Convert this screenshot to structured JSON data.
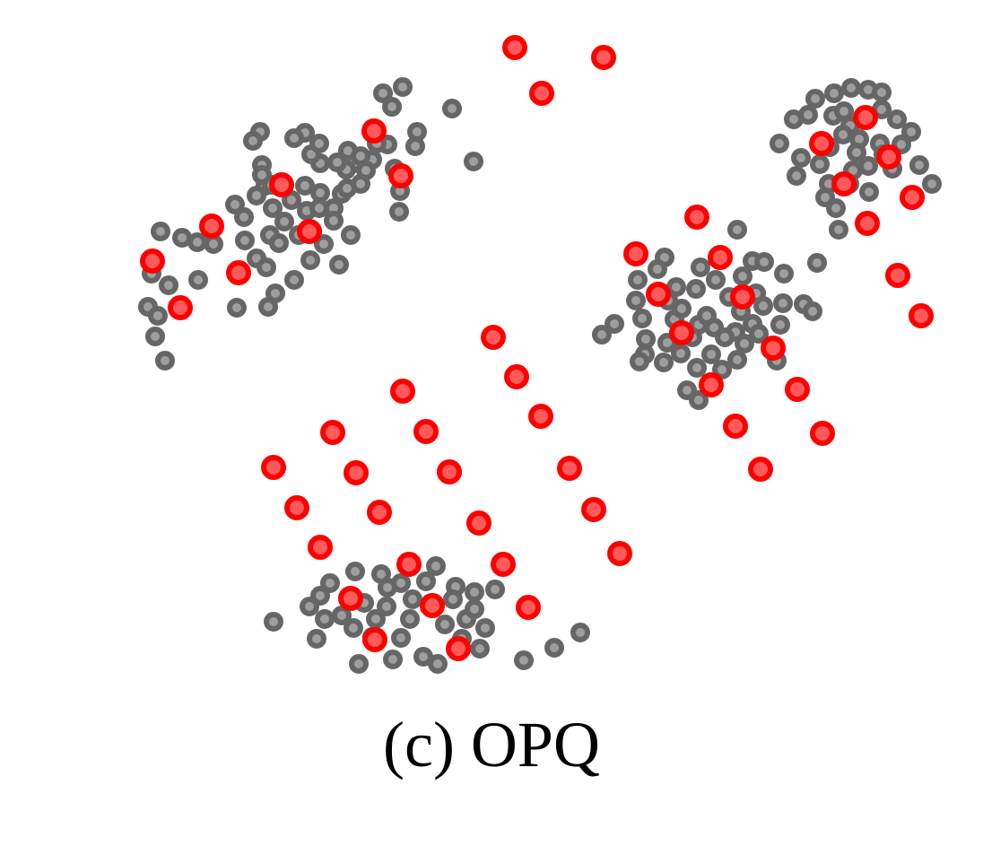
{
  "caption": "(c) OPQ",
  "colors": {
    "data_fill": "#9e9e9e",
    "data_stroke": "#666666",
    "codeword_fill": "#ff5a5a",
    "codeword_stroke": "#ff0000"
  },
  "chart_data": {
    "type": "scatter",
    "title": "",
    "xlabel": "",
    "ylabel": "",
    "axes_visible": false,
    "grid": false,
    "xlim": [
      0,
      1096
    ],
    "ylim": [
      0,
      790
    ],
    "y_inverted": true,
    "series": [
      {
        "role": "data_points",
        "color": "#666666",
        "points": [
          [
            427,
            104
          ],
          [
            449,
            97
          ],
          [
            437,
            119
          ],
          [
            504,
            121
          ],
          [
            528,
            180
          ],
          [
            465,
            147
          ],
          [
            463,
            163
          ],
          [
            432,
            161
          ],
          [
            446,
            213
          ],
          [
            445,
            236
          ],
          [
            440,
            188
          ],
          [
            415,
            178
          ],
          [
            402,
            205
          ],
          [
            394,
            182
          ],
          [
            388,
            168
          ],
          [
            408,
            190
          ],
          [
            420,
            160
          ],
          [
            386,
            189
          ],
          [
            381,
            216
          ],
          [
            372,
            232
          ],
          [
            357,
            182
          ],
          [
            340,
            148
          ],
          [
            328,
            154
          ],
          [
            347,
            172
          ],
          [
            356,
            160
          ],
          [
            290,
            147
          ],
          [
            282,
            157
          ],
          [
            292,
            184
          ],
          [
            296,
            207
          ],
          [
            304,
            232
          ],
          [
            286,
            218
          ],
          [
            272,
            242
          ],
          [
            262,
            228
          ],
          [
            273,
            268
          ],
          [
            286,
            288
          ],
          [
            297,
            298
          ],
          [
            299,
            342
          ],
          [
            307,
            327
          ],
          [
            328,
            312
          ],
          [
            346,
            290
          ],
          [
            361,
            272
          ],
          [
            378,
            295
          ],
          [
            391,
            262
          ],
          [
            372,
            246
          ],
          [
            342,
            235
          ],
          [
            325,
            223
          ],
          [
            317,
            247
          ],
          [
            301,
            262
          ],
          [
            264,
            343
          ],
          [
            238,
            272
          ],
          [
            220,
            270
          ],
          [
            221,
            312
          ],
          [
            203,
            265
          ],
          [
            179,
            258
          ],
          [
            188,
            318
          ],
          [
            169,
            305
          ],
          [
            165,
            342
          ],
          [
            176,
            352
          ],
          [
            173,
            375
          ],
          [
            184,
            402
          ],
          [
            333,
            262
          ],
          [
            356,
            232
          ],
          [
            340,
            207
          ],
          [
            357,
            215
          ],
          [
            292,
            195
          ],
          [
            303,
            206
          ],
          [
            387,
            210
          ],
          [
            402,
            174
          ],
          [
            376,
            181
          ],
          [
            311,
            271
          ],
          [
            909,
            110
          ],
          [
            930,
            104
          ],
          [
            949,
            98
          ],
          [
            968,
            100
          ],
          [
            983,
            103
          ],
          [
            885,
            133
          ],
          [
            901,
            128
          ],
          [
            929,
            129
          ],
          [
            941,
            124
          ],
          [
            948,
            140
          ],
          [
            958,
            155
          ],
          [
            981,
            160
          ],
          [
            1000,
            133
          ],
          [
            1016,
            147
          ],
          [
            995,
            188
          ],
          [
            1025,
            184
          ],
          [
            1039,
            205
          ],
          [
            1005,
            161
          ],
          [
            985,
            172
          ],
          [
            968,
            185
          ],
          [
            951,
            190
          ],
          [
            924,
            205
          ],
          [
            920,
            220
          ],
          [
            932,
            232
          ],
          [
            914,
            183
          ],
          [
            893,
            176
          ],
          [
            888,
            196
          ],
          [
            869,
            160
          ],
          [
            947,
            205
          ],
          [
            969,
            214
          ],
          [
            935,
            256
          ],
          [
            955,
            170
          ],
          [
            940,
            150
          ],
          [
            925,
            164
          ],
          [
            983,
            122
          ],
          [
            741,
            287
          ],
          [
            781,
            298
          ],
          [
            822,
            256
          ],
          [
            839,
            291
          ],
          [
            852,
            292
          ],
          [
            874,
            305
          ],
          [
            873,
            338
          ],
          [
            896,
            339
          ],
          [
            906,
            347
          ],
          [
            911,
            293
          ],
          [
            870,
            362
          ],
          [
            866,
            402
          ],
          [
            822,
            401
          ],
          [
            805,
            412
          ],
          [
            793,
            395
          ],
          [
            772,
            376
          ],
          [
            752,
            356
          ],
          [
            744,
            382
          ],
          [
            740,
            404
          ],
          [
            719,
            395
          ],
          [
            713,
            403
          ],
          [
            720,
            378
          ],
          [
            716,
            355
          ],
          [
            711,
            312
          ],
          [
            733,
            300
          ],
          [
            754,
            320
          ],
          [
            776,
            322
          ],
          [
            798,
            312
          ],
          [
            813,
            331
          ],
          [
            826,
            347
          ],
          [
            843,
            327
          ],
          [
            851,
            341
          ],
          [
            839,
            361
          ],
          [
            820,
            370
          ],
          [
            796,
            365
          ],
          [
            777,
            410
          ],
          [
            766,
            435
          ],
          [
            779,
            446
          ],
          [
            671,
            373
          ],
          [
            685,
            361
          ],
          [
            760,
            344
          ],
          [
            779,
            362
          ],
          [
            808,
            376
          ],
          [
            830,
            383
          ],
          [
            745,
            335
          ],
          [
            846,
            372
          ],
          [
            759,
            394
          ],
          [
            788,
            352
          ],
          [
            828,
            308
          ],
          [
            709,
            335
          ],
          [
            305,
            693
          ],
          [
            353,
            712
          ],
          [
            345,
            676
          ],
          [
            357,
            664
          ],
          [
            368,
            650
          ],
          [
            396,
            637
          ],
          [
            425,
            640
          ],
          [
            447,
            650
          ],
          [
            486,
            631
          ],
          [
            475,
            648
          ],
          [
            508,
            654
          ],
          [
            529,
            660
          ],
          [
            552,
            657
          ],
          [
            541,
            700
          ],
          [
            535,
            723
          ],
          [
            515,
            712
          ],
          [
            488,
            740
          ],
          [
            472,
            732
          ],
          [
            438,
            735
          ],
          [
            400,
            740
          ],
          [
            394,
            700
          ],
          [
            381,
            686
          ],
          [
            419,
            690
          ],
          [
            431,
            676
          ],
          [
            457,
            690
          ],
          [
            496,
            696
          ],
          [
            520,
            690
          ],
          [
            584,
            736
          ],
          [
            618,
            722
          ],
          [
            647,
            705
          ],
          [
            460,
            668
          ],
          [
            406,
            672
          ],
          [
            432,
            655
          ],
          [
            529,
            679
          ],
          [
            415,
            710
          ],
          [
            362,
            690
          ],
          [
            505,
            668
          ],
          [
            447,
            711
          ]
        ]
      },
      {
        "role": "codewords",
        "color": "#ff0000",
        "points": [
          [
            574,
            53
          ],
          [
            673,
            64
          ],
          [
            604,
            104
          ],
          [
            417,
            146
          ],
          [
            447,
            196
          ],
          [
            314,
            206
          ],
          [
            236,
            252
          ],
          [
            345,
            258
          ],
          [
            170,
            291
          ],
          [
            266,
            304
          ],
          [
            201,
            343
          ],
          [
            965,
            131
          ],
          [
            916,
            160
          ],
          [
            991,
            175
          ],
          [
            941,
            205
          ],
          [
            1017,
            220
          ],
          [
            967,
            249
          ],
          [
            1001,
            307
          ],
          [
            1027,
            352
          ],
          [
            777,
            242
          ],
          [
            709,
            283
          ],
          [
            803,
            287
          ],
          [
            734,
            328
          ],
          [
            828,
            331
          ],
          [
            760,
            371
          ],
          [
            862,
            388
          ],
          [
            793,
            429
          ],
          [
            889,
            434
          ],
          [
            820,
            475
          ],
          [
            917,
            483
          ],
          [
            848,
            523
          ],
          [
            550,
            376
          ],
          [
            576,
            420
          ],
          [
            449,
            436
          ],
          [
            603,
            464
          ],
          [
            371,
            482
          ],
          [
            475,
            481
          ],
          [
            305,
            521
          ],
          [
            397,
            527
          ],
          [
            501,
            526
          ],
          [
            635,
            522
          ],
          [
            331,
            566
          ],
          [
            423,
            571
          ],
          [
            534,
            583
          ],
          [
            662,
            568
          ],
          [
            357,
            610
          ],
          [
            456,
            629
          ],
          [
            561,
            629
          ],
          [
            691,
            617
          ],
          [
            391,
            667
          ],
          [
            482,
            675
          ],
          [
            589,
            677
          ],
          [
            418,
            713
          ],
          [
            511,
            723
          ]
        ]
      }
    ]
  }
}
